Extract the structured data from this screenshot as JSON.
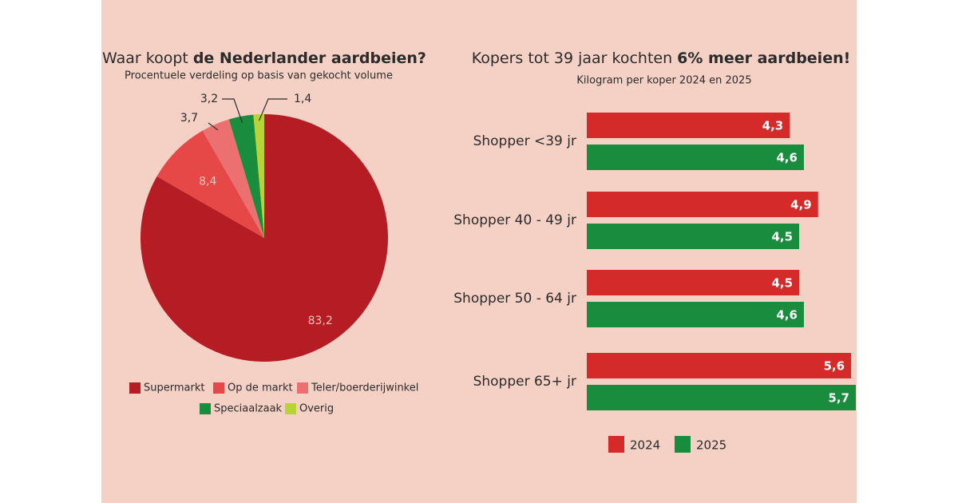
{
  "chart_data": [
    {
      "type": "pie",
      "title": [
        "Waar koopt",
        "de Nederlander aardbeien?"
      ],
      "subtitle": "Procentuele verdeling op basis van gekocht volume",
      "categories": [
        "Supermarkt",
        "Op de markt",
        "Teler/boerderijwinkel",
        "Speciaalzaak",
        "Overig"
      ],
      "values": [
        83.2,
        8.4,
        3.7,
        3.2,
        1.4
      ],
      "value_labels": [
        "83,2",
        "8,4",
        "3,7",
        "3,2",
        "1,4"
      ],
      "colors": [
        "#b51c24",
        "#e64848",
        "#ec7070",
        "#1a8c3e",
        "#b7d336"
      ]
    },
    {
      "type": "bar",
      "orientation": "horizontal",
      "title": [
        "Kopers tot 39 jaar kochten",
        "6% meer aardbeien!"
      ],
      "subtitle": "Kilogram per koper 2024 en 2025",
      "categories": [
        "Shopper <39 jr",
        "Shopper 40 - 49 jr",
        "Shopper 50 - 64 jr",
        "Shopper 65+ jr"
      ],
      "series": [
        {
          "name": "2024",
          "color": "#d42a2a",
          "values": [
            4.3,
            4.9,
            4.5,
            5.6
          ],
          "value_labels": [
            "4,3",
            "4,9",
            "4,5",
            "5,6"
          ]
        },
        {
          "name": "2025",
          "color": "#1a8c3e",
          "values": [
            4.6,
            4.5,
            4.6,
            5.7
          ],
          "value_labels": [
            "4,6",
            "4,5",
            "4,6",
            "5,7"
          ]
        }
      ],
      "xlim": [
        0,
        5.7
      ]
    }
  ]
}
